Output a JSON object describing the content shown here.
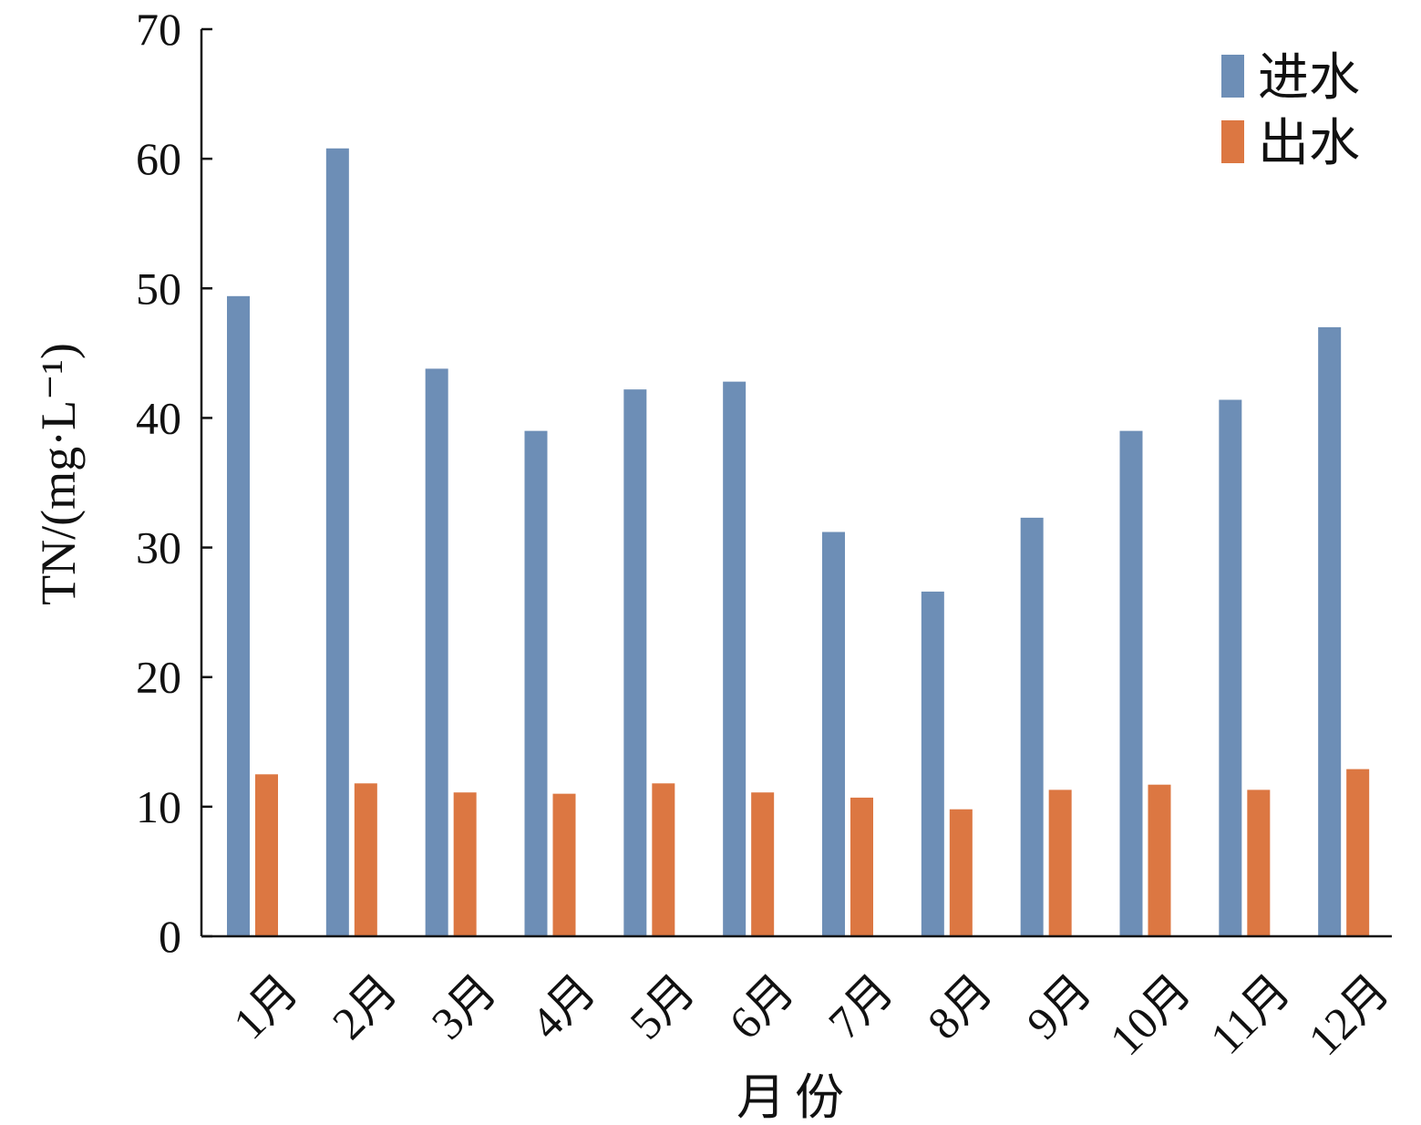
{
  "chart_data": {
    "type": "bar",
    "ylabel": "TN/(mg·L⁻¹)",
    "xlabel": "月份",
    "ylim": [
      0,
      70
    ],
    "yticks": [
      "0",
      "10",
      "20",
      "30",
      "40",
      "50",
      "60",
      "70"
    ],
    "categories": [
      "1月",
      "2月",
      "3月",
      "4月",
      "5月",
      "6月",
      "7月",
      "8月",
      "9月",
      "10月",
      "11月",
      "12月"
    ],
    "series": [
      {
        "name": "进水",
        "color": "#6d8eb6",
        "values": [
          49.4,
          60.8,
          43.8,
          39.0,
          42.2,
          42.8,
          31.2,
          26.6,
          32.3,
          39.0,
          41.4,
          47.0
        ]
      },
      {
        "name": "出水",
        "color": "#dc7742",
        "values": [
          12.5,
          11.8,
          11.1,
          11.0,
          11.8,
          11.1,
          10.7,
          9.8,
          11.3,
          11.7,
          11.3,
          12.9
        ]
      }
    ],
    "grid": false,
    "legend_position": "top-right"
  }
}
